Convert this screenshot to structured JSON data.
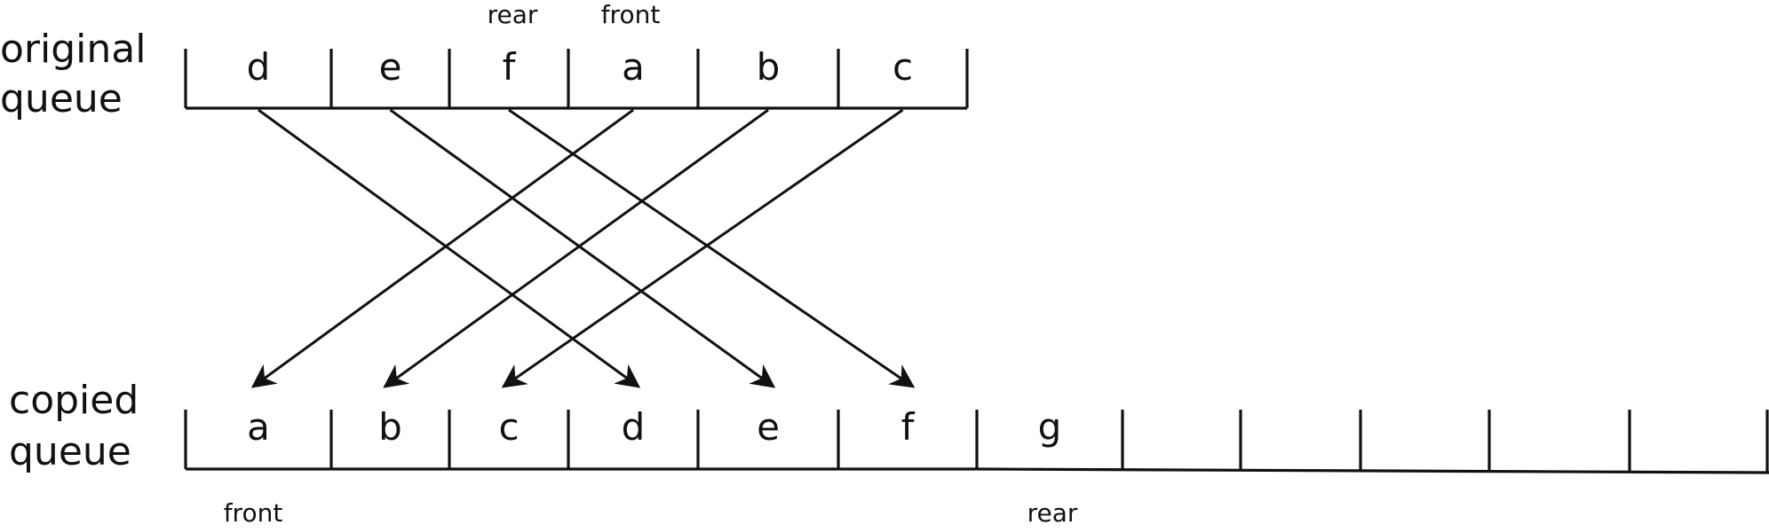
{
  "original": {
    "label_line1": "original",
    "label_line2": "queue",
    "cells": [
      "d",
      "e",
      "f",
      "a",
      "b",
      "c"
    ],
    "rear_label": "rear",
    "front_label": "front"
  },
  "copied": {
    "label_line1": "copied",
    "label_line2": "queue",
    "cells": [
      "a",
      "b",
      "c",
      "d",
      "e",
      "f",
      "g",
      "",
      "",
      "",
      "",
      "",
      ""
    ],
    "front_label": "front",
    "rear_label": "rear"
  },
  "mapping": [
    {
      "from": 0,
      "to": 3
    },
    {
      "from": 1,
      "to": 4
    },
    {
      "from": 2,
      "to": 5
    },
    {
      "from": 3,
      "to": 0
    },
    {
      "from": 4,
      "to": 1
    },
    {
      "from": 5,
      "to": 2
    }
  ]
}
